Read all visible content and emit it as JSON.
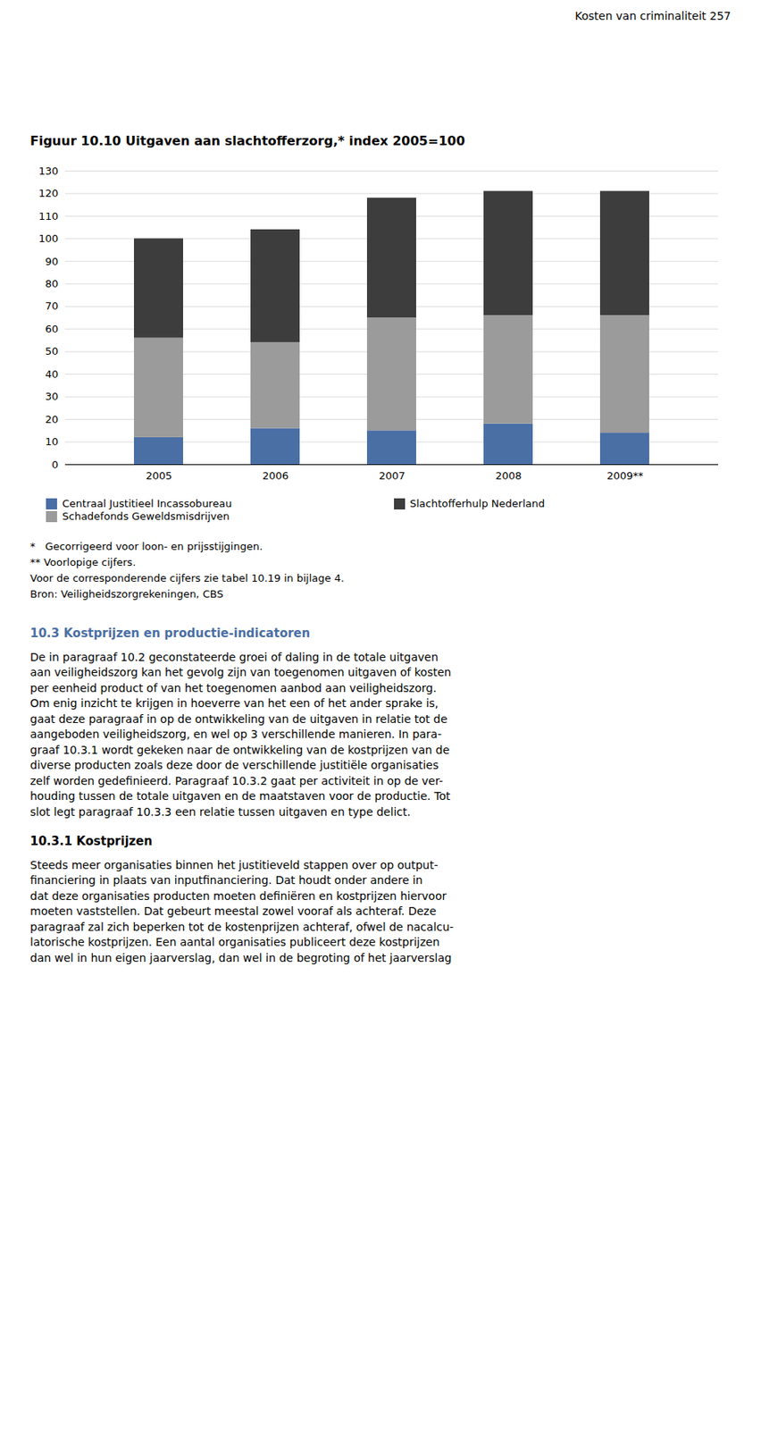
{
  "chart_data": {
    "type": "bar",
    "stacked": true,
    "title": "Figuur 10.10 Uitgaven aan slachtofferzorg,* index 2005=100",
    "categories": [
      "2005",
      "2006",
      "2007",
      "2008",
      "2009**"
    ],
    "series": [
      {
        "name": "Centraal Justitieel Incassobureau",
        "color": "#4a6fa5",
        "values": [
          12,
          16,
          15,
          18,
          14
        ]
      },
      {
        "name": "Schadefonds Geweldsmisdrijven",
        "color": "#9b9b9b",
        "values": [
          44,
          38,
          50,
          48,
          52
        ]
      },
      {
        "name": "Slachtofferhulp Nederland",
        "color": "#3d3d3d",
        "values": [
          44,
          50,
          53,
          55,
          55
        ]
      }
    ],
    "ylim": [
      0,
      130
    ],
    "yticks": [
      0,
      10,
      20,
      30,
      40,
      50,
      60,
      70,
      80,
      90,
      100,
      110,
      120,
      130
    ],
    "grid": true,
    "legend": "bottom",
    "annotations": [
      "Kosten van criminaliteit  257",
      "*   Gecorrigeerd voor loon- en prijsstijgingen.",
      "** Voorlopige cijfers.",
      "Voor de corresponderende cijfers zie tabel 10.19 in bijlage 4.",
      "Bron: Veiligheidszorgrekeningen, CBS",
      "10.3 Kostprijzen en productie-indicatoren",
      "De in paragraaf 10.2 geconstateerde groei of daling in de totale uitgaven",
      "aan veiligheidszorg kan het gevolg zijn van toegenomen uitgaven of kosten",
      "per eenheid product of van het toegenomen aanbod aan veiligheidszorg.",
      "Om enig inzicht te krijgen in hoeverre van het een of het ander sprake is,",
      "gaat deze paragraaf in op de ontwikkeling van de uitgaven in relatie tot de",
      "aangeboden veiligheidszorg, en wel op 3 verschillende manieren. In para-",
      "graaf 10.3.1 wordt gekeken naar de ontwikkeling van de kostprijzen van de",
      "diverse producten zoals deze door de verschillende justitiële organisaties",
      "zelf worden gedefinieerd. Paragraaf 10.3.2 gaat per activiteit in op de ver-",
      "houding tussen de totale uitgaven en de maatstaven voor de productie. Tot",
      "slot legt paragraaf 10.3.3 een relatie tussen uitgaven en type delict.",
      "10.3.1 Kostprijzen",
      "Steeds meer organisaties binnen het justitieveld stappen over op output-",
      "financiering in plaats van inputfinanciering. Dat houdt onder andere in",
      "dat deze organisaties producten moeten definiëren en kostprijzen hiervoor",
      "moeten vaststellen. Dat gebeurt meestal zowel vooraf als achteraf. Deze",
      "paragraaf zal zich beperken tot de kostenprijzen achteraf, ofwel de nacalcu-",
      "latorische kostprijzen. Een aantal organisaties publiceert deze kostprijzen",
      "dan wel in hun eigen jaarverslag, dan wel in de begroting of het jaarverslag"
    ]
  }
}
